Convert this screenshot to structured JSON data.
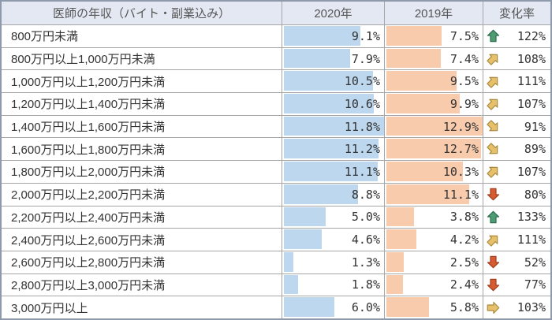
{
  "table": {
    "header": {
      "category": "医師の年収（バイト・副業込み）",
      "col2020": "2020年",
      "col2019": "2019年",
      "change": "変化率"
    }
  },
  "chart_data": {
    "type": "table",
    "title": "医師の年収（バイト・副業込み）",
    "categories": [
      "800万円未満",
      "800万円以上1,000万円未満",
      "1,000万円以上1,200万円未満",
      "1,200万円以上1,400万円未満",
      "1,400万円以上1,600万円未満",
      "1,600万円以上1,800万円未満",
      "1,800万円以上2,000万円未満",
      "2,000万円以上2,200万円未満",
      "2,200万円以上2,400万円未満",
      "2,400万円以上2,600万円未満",
      "2,600万円以上2,800万円未満",
      "2,800万円以上3,000万円未満",
      "3,000万円以上"
    ],
    "series": [
      {
        "name": "2020年",
        "values": [
          9.1,
          7.9,
          10.5,
          10.6,
          11.8,
          11.2,
          11.1,
          8.8,
          5.0,
          4.6,
          1.3,
          1.8,
          6.0
        ],
        "unit": "%"
      },
      {
        "name": "2019年",
        "values": [
          7.5,
          7.4,
          9.5,
          9.9,
          12.9,
          12.7,
          10.3,
          11.1,
          3.8,
          4.2,
          2.5,
          2.4,
          5.8
        ],
        "unit": "%"
      }
    ],
    "change_rate": [
      "122%",
      "108%",
      "111%",
      "107%",
      "91%",
      "89%",
      "107%",
      "80%",
      "133%",
      "111%",
      "52%",
      "77%",
      "103%"
    ],
    "trends": [
      "up",
      "up-right",
      "up-right",
      "up-right",
      "down-right",
      "down-right",
      "up-right",
      "down",
      "up",
      "up-right",
      "down",
      "down",
      "right"
    ],
    "layout": {
      "bars_in_cells": true,
      "bar_scale": "zero_to_column_max",
      "value_alignment": "right"
    }
  },
  "colors": {
    "bar_2020": "#BDD7EE",
    "bar_2019": "#F8CBAD",
    "header_bg": "#E3E8F3",
    "grid_border": "#A6A6A6",
    "outer_border": "#8E99AB",
    "text": "#333333",
    "header_text": "#555555",
    "arrow_up_fill": "#4E9C71",
    "arrow_up_stroke": "#2B6B4B",
    "arrow_neutral_fill": "#E7C06B",
    "arrow_neutral_stroke": "#AA8A3C",
    "arrow_down_fill": "#D75B32",
    "arrow_down_stroke": "#A03C1C"
  }
}
